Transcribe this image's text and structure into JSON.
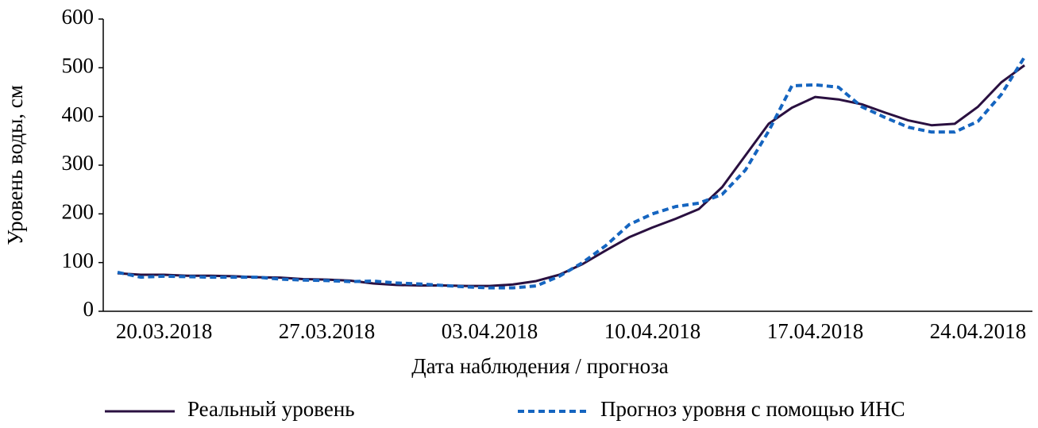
{
  "chart_data": {
    "type": "line",
    "ylabel": "Уровень воды, см",
    "xlabel": "Дата наблюдения / прогноза",
    "categories": [
      null,
      null,
      "20.03.2018",
      null,
      null,
      null,
      null,
      null,
      null,
      "27.03.2018",
      null,
      null,
      null,
      null,
      null,
      null,
      "03.04.2018",
      null,
      null,
      null,
      null,
      null,
      null,
      "10.04.2018",
      null,
      null,
      null,
      null,
      null,
      null,
      "17.04.2018",
      null,
      null,
      null,
      null,
      null,
      null,
      "24.04.2018",
      null,
      null
    ],
    "series": [
      {
        "name": "Реальный уровень",
        "color": "#2a1040",
        "dash": false,
        "values": [
          78,
          75,
          75,
          73,
          73,
          72,
          70,
          69,
          66,
          65,
          63,
          57,
          54,
          53,
          53,
          52,
          52,
          55,
          62,
          75,
          97,
          125,
          152,
          172,
          190,
          210,
          255,
          320,
          385,
          418,
          440,
          435,
          425,
          408,
          392,
          382,
          385,
          420,
          470,
          505
        ]
      },
      {
        "name": "Прогноз уровня с помощью ИНС",
        "color": "#1565c0",
        "dash": true,
        "values": [
          80,
          70,
          72,
          71,
          70,
          70,
          70,
          66,
          64,
          63,
          61,
          62,
          58,
          56,
          53,
          50,
          48,
          48,
          52,
          72,
          100,
          135,
          178,
          200,
          215,
          222,
          240,
          290,
          370,
          463,
          465,
          460,
          420,
          398,
          378,
          368,
          368,
          390,
          445,
          522
        ]
      }
    ],
    "ylim": [
      0,
      600
    ],
    "yticks": [
      0,
      100,
      200,
      300,
      400,
      500,
      600
    ]
  }
}
